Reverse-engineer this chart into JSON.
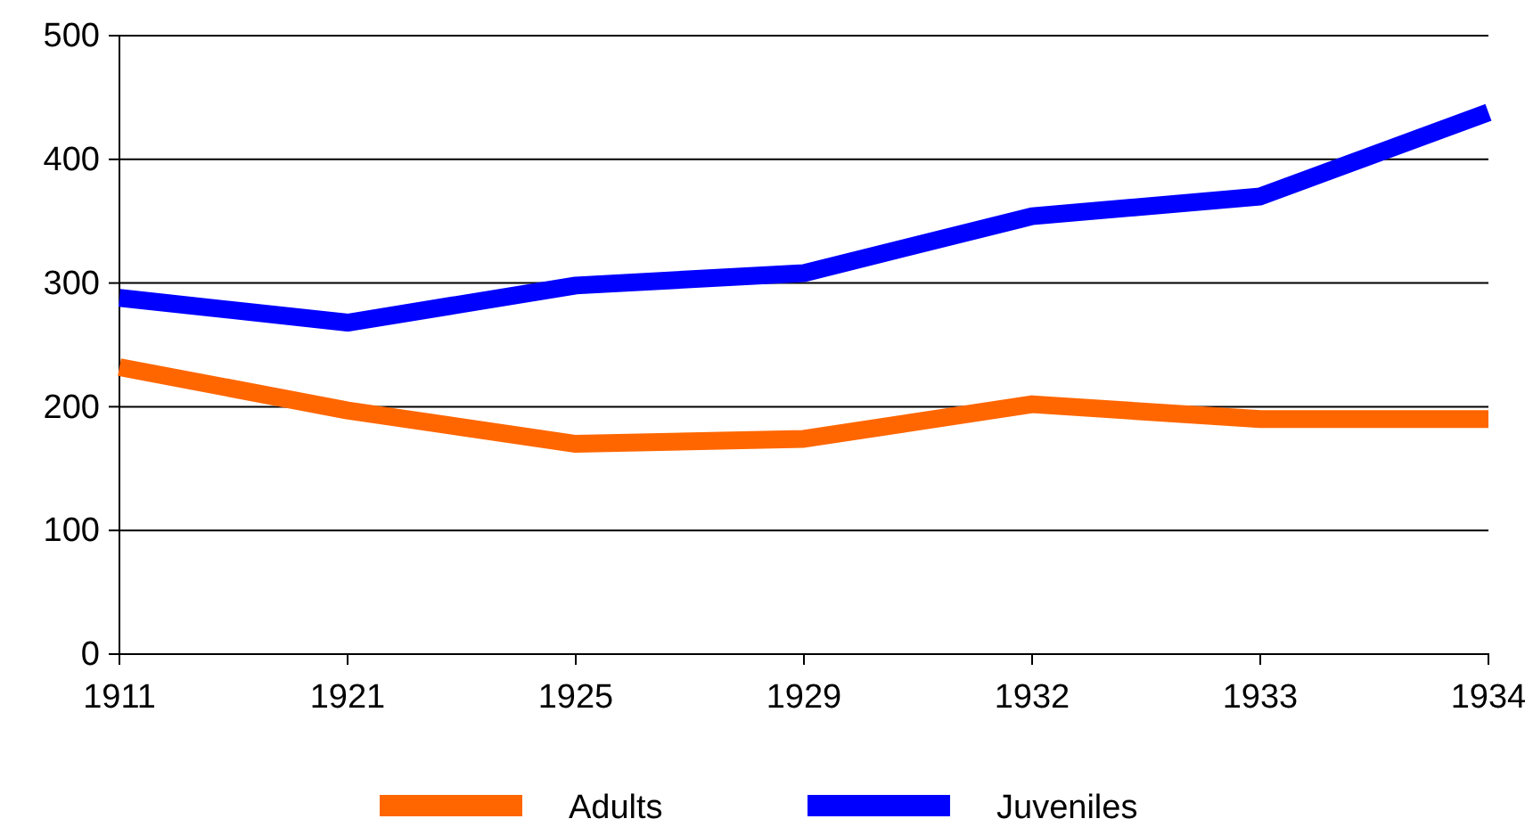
{
  "chart_data": {
    "type": "line",
    "categories": [
      "1911",
      "1921",
      "1925",
      "1929",
      "1932",
      "1933",
      "1934"
    ],
    "series": [
      {
        "name": "Adults",
        "color": "#ff6600",
        "values": [
          232,
          197,
          170,
          174,
          202,
          190,
          190
        ]
      },
      {
        "name": "Juveniles",
        "color": "#0000ff",
        "values": [
          288,
          268,
          298,
          308,
          354,
          370,
          438
        ]
      }
    ],
    "ylim": [
      0,
      500
    ],
    "yticks": [
      0,
      100,
      200,
      300,
      400,
      500
    ],
    "grid": "y",
    "legend": "bottom",
    "line_style": "solid",
    "marker": "none"
  }
}
